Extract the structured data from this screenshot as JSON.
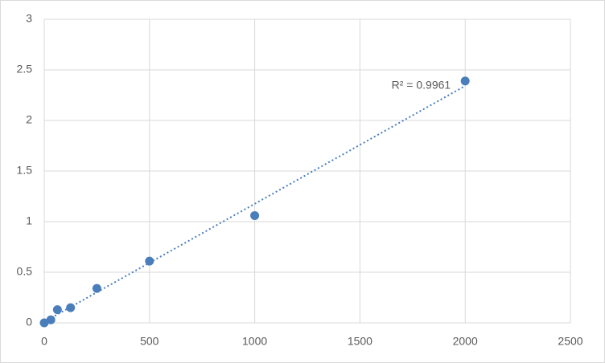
{
  "chart_data": {
    "type": "scatter",
    "x": [
      0,
      31.25,
      62.5,
      125,
      250,
      500,
      1000,
      2000
    ],
    "values": [
      0,
      0.03,
      0.13,
      0.15,
      0.34,
      0.61,
      1.06,
      2.39
    ],
    "color": "#4a7ebb",
    "trendline": "linear",
    "annotation": "R² = 0.9961",
    "xlim": [
      0,
      2500
    ],
    "xticks": [
      0,
      500,
      1000,
      1500,
      2000,
      2500
    ],
    "ylim": [
      0,
      3
    ],
    "yticks": [
      0,
      0.5,
      1,
      1.5,
      2,
      2.5,
      3
    ],
    "grid": true
  }
}
